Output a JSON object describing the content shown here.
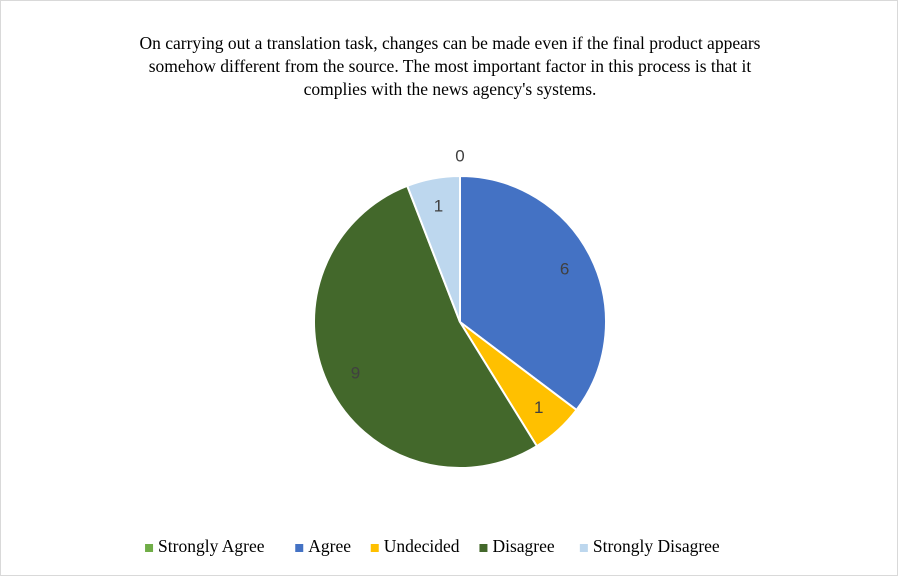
{
  "chart_data": {
    "type": "pie",
    "title": "On carrying out a translation task, changes can be made even if the final product appears somehow different from the source. The most important factor in this process is that it complies with the news agency's systems.",
    "categories": [
      "Strongly Agree",
      "Agree",
      "Undecided",
      "Disagree",
      "Strongly Disagree"
    ],
    "values": [
      0,
      6,
      1,
      9,
      1
    ],
    "colors": [
      "#70ad47",
      "#4472c4",
      "#ffc000",
      "#43682b",
      "#bdd7ee"
    ],
    "legend": "bottom"
  }
}
